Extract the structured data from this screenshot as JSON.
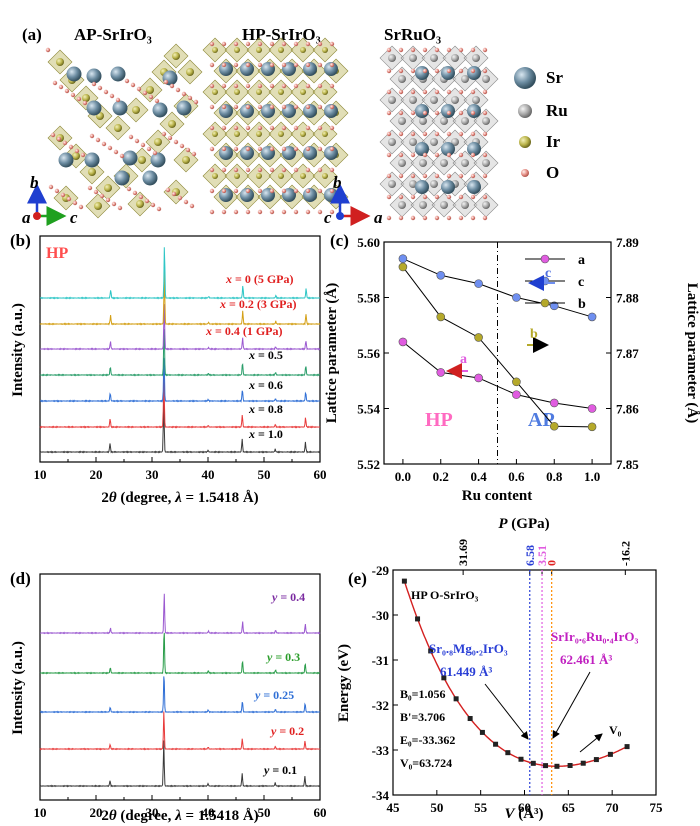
{
  "panel_a": {
    "label": "(a)",
    "structures": [
      "AP-SrIrO₃",
      "HP-SrIrO₃",
      "SrRuO₃"
    ],
    "legend": [
      {
        "name": "Sr",
        "color": "#6e8ea3"
      },
      {
        "name": "Ru",
        "color": "#b9b9b9"
      },
      {
        "name": "Ir",
        "color": "#b9b34a"
      },
      {
        "name": "O",
        "color": "#e58f86"
      }
    ],
    "axes_labels": [
      "a",
      "b",
      "c"
    ]
  },
  "chart_data": [
    {
      "id": "b",
      "type": "line",
      "panel_label": "(b)",
      "tag": "HP",
      "tag_color": "#ff4d4d",
      "xlabel_prefix": "2",
      "xlabel_theta": "θ",
      "xlabel_suffix": " (degree, ",
      "xlabel_lambda": "λ",
      "xlabel_end": " = 1.5418 Å)",
      "ylabel": "Intensity (a.u.)",
      "xlim": [
        10,
        60
      ],
      "xticks": [
        10,
        20,
        30,
        40,
        50,
        60
      ],
      "series": [
        {
          "label": "x = 1.0",
          "xv": "x",
          "rest": " = 1.0",
          "color": "#3a3a3a",
          "label_color": "#000000"
        },
        {
          "label": "x = 0.8",
          "xv": "x",
          "rest": " = 0.8",
          "color": "#e83b3b",
          "label_color": "#000000"
        },
        {
          "label": "x = 0.6",
          "xv": "x",
          "rest": " = 0.6",
          "color": "#2f6fd6",
          "label_color": "#000000"
        },
        {
          "label": "x = 0.5",
          "xv": "x",
          "rest": " = 0.5",
          "color": "#2a9d6a",
          "label_color": "#000000"
        },
        {
          "label": "x = 0.4 (1 GPa)",
          "xv": "x",
          "rest": " = 0.4 (1 GPa)",
          "color": "#9b59d0",
          "label_color": "#e02020"
        },
        {
          "label": "x = 0.2 (3 GPa)",
          "xv": "x",
          "rest": " = 0.2 (3 GPa)",
          "color": "#d4a017",
          "label_color": "#e02020"
        },
        {
          "label": "x = 0 (5 GPa)",
          "xv": "x",
          "rest": " = 0 (5 GPa)",
          "color": "#2fc6c6",
          "label_color": "#e02020"
        }
      ],
      "peaks": [
        [
          22.5,
          0.16
        ],
        [
          32.1,
          1.0
        ],
        [
          40.0,
          0.03
        ],
        [
          46.1,
          0.24
        ],
        [
          52.0,
          0.05
        ],
        [
          57.4,
          0.18
        ]
      ]
    },
    {
      "id": "c",
      "type": "line",
      "panel_label": "(c)",
      "xlabel": "Ru content",
      "ylabel": "Lattice parameter (Å)",
      "y2label": "Lattice parameter (Å)",
      "xlim": [
        -0.1,
        1.1
      ],
      "xticks": [
        0.0,
        0.2,
        0.4,
        0.6,
        0.8,
        1.0
      ],
      "ylim": [
        5.52,
        5.6
      ],
      "yticks": [
        5.52,
        5.54,
        5.56,
        5.58,
        5.6
      ],
      "y2lim": [
        7.85,
        7.89
      ],
      "y2ticks": [
        7.85,
        7.86,
        7.87,
        7.88,
        7.89
      ],
      "divider_x": 0.5,
      "regions": [
        {
          "text": "HP",
          "color": "#ff6ac1"
        },
        {
          "text": "AP",
          "color": "#4f7be0"
        }
      ],
      "series": [
        {
          "name": "a",
          "color": "#e05ce0",
          "axis": "left",
          "x": [
            0.0,
            0.2,
            0.4,
            0.6,
            0.8,
            1.0
          ],
          "y": [
            5.564,
            5.553,
            5.551,
            5.545,
            5.542,
            5.54
          ]
        },
        {
          "name": "c",
          "color": "#6f8ff0",
          "axis": "left",
          "x": [
            0.0,
            0.2,
            0.4,
            0.6,
            0.8,
            1.0
          ],
          "y": [
            5.594,
            5.588,
            5.585,
            5.58,
            5.577,
            5.573
          ]
        },
        {
          "name": "b",
          "color": "#b5a92a",
          "axis": "right",
          "x": [
            0.0,
            0.2,
            0.4,
            0.6,
            0.8,
            1.0
          ],
          "y": [
            7.8855,
            7.8765,
            7.8728,
            7.8648,
            7.8568,
            7.8567
          ]
        }
      ],
      "arrow_labels": {
        "a": "a",
        "b": "b",
        "c": "c"
      }
    },
    {
      "id": "d",
      "type": "line",
      "panel_label": "(d)",
      "xlabel_prefix": "2",
      "xlabel_theta": "θ",
      "xlabel_suffix": " (degree, ",
      "xlabel_lambda": "λ",
      "xlabel_end": " = 1.5418 Å)",
      "ylabel": "Intensity (a.u.)",
      "xlim": [
        10,
        60
      ],
      "xticks": [
        10,
        20,
        30,
        40,
        50,
        60
      ],
      "series": [
        {
          "label": "y = 0.1",
          "yv": "y",
          "rest": " = 0.1",
          "color": "#3a3a3a",
          "label_color": "#000000"
        },
        {
          "label": "y = 0.2",
          "yv": "y",
          "rest": " = 0.2",
          "color": "#e83b3b",
          "label_color": "#e02020"
        },
        {
          "label": "y = 0.25",
          "yv": "y",
          "rest": " = 0.25",
          "color": "#2f6fd6",
          "label_color": "#2f6fd6"
        },
        {
          "label": "y = 0.3",
          "yv": "y",
          "rest": " = 0.3",
          "color": "#2a9d4a",
          "label_color": "#2a9d2a"
        },
        {
          "label": "y = 0.4",
          "yv": "y",
          "rest": " = 0.4",
          "color": "#9b59d0",
          "label_color": "#7a2aa0"
        }
      ],
      "peaks": [
        [
          22.5,
          0.12
        ],
        [
          32.1,
          1.0
        ],
        [
          40.0,
          0.05
        ],
        [
          46.1,
          0.28
        ],
        [
          52.0,
          0.07
        ],
        [
          57.3,
          0.22
        ]
      ]
    },
    {
      "id": "e",
      "type": "line",
      "panel_label": "(e)",
      "xlabel_var": "V",
      "xlabel_unit": " (Å³)",
      "ylabel": "Energy (eV)",
      "top_label_var": "P",
      "top_label_unit": " (GPa)",
      "xlim": [
        45,
        75
      ],
      "xticks": [
        45,
        50,
        55,
        60,
        65,
        70,
        75
      ],
      "ylim": [
        -34,
        -29
      ],
      "yticks": [
        -34,
        -33,
        -32,
        -31,
        -30,
        -29
      ],
      "top_ticks": [
        {
          "label": "31.69",
          "V": 53.0,
          "color": "#000000"
        },
        {
          "label": "6.58",
          "V": 60.6,
          "color": "#2a3fd6"
        },
        {
          "label": "3.51",
          "V": 62.0,
          "color": "#e05ce0"
        },
        {
          "label": "0",
          "V": 63.1,
          "color": "#e02020"
        },
        {
          "label": "-16.2",
          "V": 71.5,
          "color": "#000000"
        }
      ],
      "title_text": "HP O-SrIrO₃",
      "fit": {
        "B0": 1.056,
        "Bp": 3.706,
        "E0": -33.362,
        "V0": 63.724
      },
      "fit_labels": [
        "B₀=1.056",
        "B'=3.706",
        "E₀=-33.362",
        "V₀=63.724"
      ],
      "v0_label": "V₀",
      "markers": [
        {
          "V": 60.6,
          "color": "#2a3fd6"
        },
        {
          "V": 62.0,
          "color": "#e05ce0"
        },
        {
          "V": 63.1,
          "color": "#ff8c00"
        }
      ],
      "annotations": [
        {
          "formula": "Sr₀.₈Mg₀.₂IrO₃",
          "value": "61.449 Å³",
          "color": "#2a3fd6"
        },
        {
          "formula": "SrIr₀.₆Ru₀.₄IrO₃",
          "value": "62.461 Å³",
          "color": "#c020c0"
        }
      ],
      "x": [
        46.3,
        47.8,
        49.3,
        50.8,
        52.2,
        53.8,
        55.2,
        56.7,
        58.1,
        59.6,
        61.0,
        62.4,
        63.7,
        65.2,
        66.7,
        68.2,
        69.8,
        71.7
      ],
      "curve_color": "#d42020",
      "point_color": "#222222"
    }
  ]
}
